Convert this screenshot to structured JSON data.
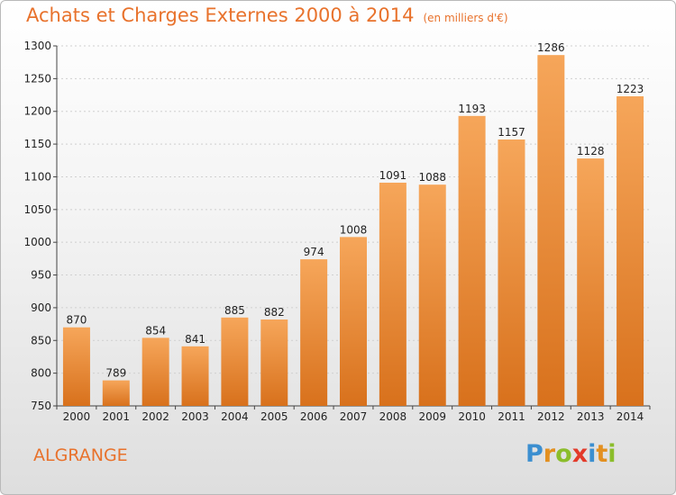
{
  "title": "Achats et Charges Externes 2000 à 2014",
  "unit": "(en milliers d'€)",
  "location": "ALGRANGE",
  "logo": {
    "letters": [
      {
        "ch": "P",
        "color": "#3c8fd0"
      },
      {
        "ch": "r",
        "color": "#e39020"
      },
      {
        "ch": "o",
        "color": "#8bbd2b"
      },
      {
        "ch": "x",
        "color": "#e33a2a"
      },
      {
        "ch": "i",
        "color": "#3c8fd0"
      },
      {
        "ch": "t",
        "color": "#e39020"
      },
      {
        "ch": "i",
        "color": "#8bbd2b"
      }
    ]
  },
  "colors": {
    "bar_top": "#f6a65a",
    "bar_bottom": "#d8711c",
    "title": "#e8722c"
  },
  "chart_data": {
    "type": "bar",
    "title": "Achats et Charges Externes 2000 à 2014",
    "subtitle": "(en milliers d'€)",
    "categories": [
      "2000",
      "2001",
      "2002",
      "2003",
      "2004",
      "2005",
      "2006",
      "2007",
      "2008",
      "2009",
      "2010",
      "2011",
      "2012",
      "2013",
      "2014"
    ],
    "values": [
      870,
      789,
      854,
      841,
      885,
      882,
      974,
      1008,
      1091,
      1088,
      1193,
      1157,
      1286,
      1128,
      1223
    ],
    "ylim": [
      750,
      1300
    ],
    "yticks": [
      750,
      800,
      850,
      900,
      950,
      1000,
      1050,
      1100,
      1150,
      1200,
      1250,
      1300
    ],
    "grid": true,
    "xlabel": "",
    "ylabel": ""
  }
}
